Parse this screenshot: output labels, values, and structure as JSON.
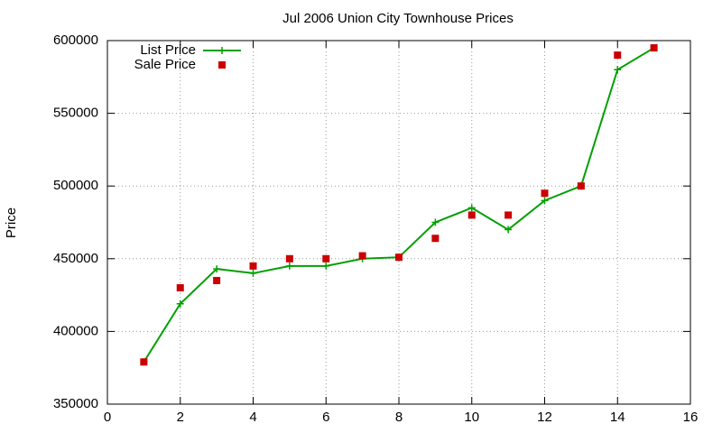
{
  "chart_data": {
    "type": "line",
    "title": "Jul 2006 Union City Townhouse Prices",
    "y_label": "Price",
    "x": [
      1,
      2,
      3,
      4,
      5,
      6,
      7,
      8,
      9,
      10,
      11,
      12,
      13,
      14,
      15
    ],
    "series": [
      {
        "name": "List Price",
        "color": "#00a000",
        "style": "linespoints",
        "values": [
          379000,
          419000,
          443000,
          440000,
          445000,
          445000,
          450000,
          451000,
          475000,
          485000,
          470000,
          490000,
          500000,
          580000,
          595000
        ]
      },
      {
        "name": "Sale Price",
        "color": "#cc0000",
        "style": "points",
        "values": [
          379000,
          430000,
          435000,
          445000,
          450000,
          450000,
          452000,
          451000,
          464000,
          480000,
          480000,
          495000,
          500000,
          590000,
          595000
        ]
      }
    ],
    "xlim": [
      0,
      16
    ],
    "xticks": [
      0,
      2,
      4,
      6,
      8,
      10,
      12,
      14,
      16
    ],
    "ylim": [
      350000,
      600000
    ],
    "yticks": [
      350000,
      400000,
      450000,
      500000,
      550000,
      600000
    ],
    "grid": true,
    "legend": "top-left"
  }
}
